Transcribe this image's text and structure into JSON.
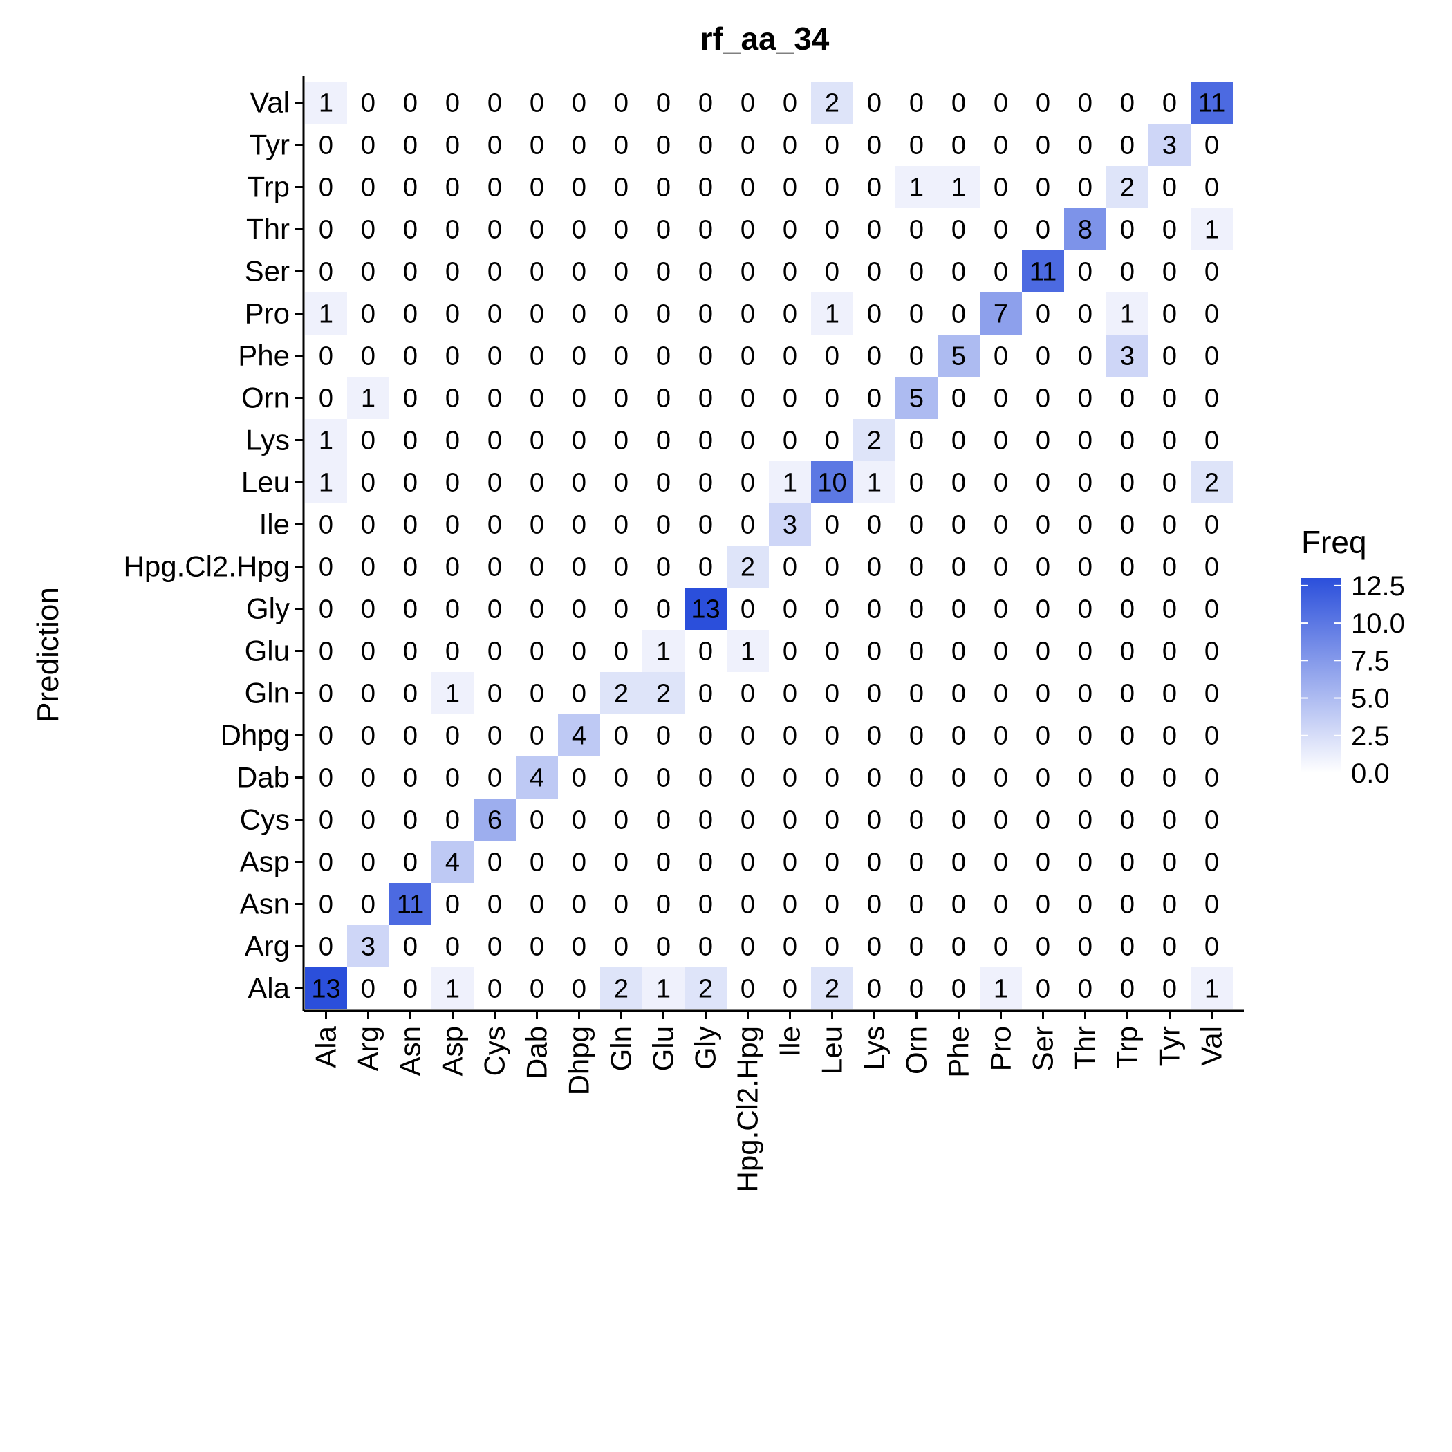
{
  "chart_data": {
    "type": "heatmap",
    "title": "rf_aa_34",
    "xlabel": "",
    "ylabel": "Prediction",
    "x_categories": [
      "Ala",
      "Arg",
      "Asn",
      "Asp",
      "Cys",
      "Dab",
      "Dhpg",
      "Gln",
      "Glu",
      "Gly",
      "Hpg.Cl2.Hpg",
      "Ile",
      "Leu",
      "Lys",
      "Orn",
      "Phe",
      "Pro",
      "Ser",
      "Thr",
      "Trp",
      "Tyr",
      "Val"
    ],
    "y_categories": [
      "Ala",
      "Arg",
      "Asn",
      "Asp",
      "Cys",
      "Dab",
      "Dhpg",
      "Gln",
      "Glu",
      "Gly",
      "Hpg.Cl2.Hpg",
      "Ile",
      "Leu",
      "Lys",
      "Orn",
      "Phe",
      "Pro",
      "Ser",
      "Thr",
      "Trp",
      "Tyr",
      "Val"
    ],
    "values": [
      [
        13,
        0,
        0,
        1,
        0,
        0,
        0,
        2,
        1,
        2,
        0,
        0,
        2,
        0,
        0,
        0,
        1,
        0,
        0,
        0,
        0,
        1
      ],
      [
        0,
        3,
        0,
        0,
        0,
        0,
        0,
        0,
        0,
        0,
        0,
        0,
        0,
        0,
        0,
        0,
        0,
        0,
        0,
        0,
        0,
        0
      ],
      [
        0,
        0,
        11,
        0,
        0,
        0,
        0,
        0,
        0,
        0,
        0,
        0,
        0,
        0,
        0,
        0,
        0,
        0,
        0,
        0,
        0,
        0
      ],
      [
        0,
        0,
        0,
        4,
        0,
        0,
        0,
        0,
        0,
        0,
        0,
        0,
        0,
        0,
        0,
        0,
        0,
        0,
        0,
        0,
        0,
        0
      ],
      [
        0,
        0,
        0,
        0,
        6,
        0,
        0,
        0,
        0,
        0,
        0,
        0,
        0,
        0,
        0,
        0,
        0,
        0,
        0,
        0,
        0,
        0
      ],
      [
        0,
        0,
        0,
        0,
        0,
        4,
        0,
        0,
        0,
        0,
        0,
        0,
        0,
        0,
        0,
        0,
        0,
        0,
        0,
        0,
        0,
        0
      ],
      [
        0,
        0,
        0,
        0,
        0,
        0,
        4,
        0,
        0,
        0,
        0,
        0,
        0,
        0,
        0,
        0,
        0,
        0,
        0,
        0,
        0,
        0
      ],
      [
        0,
        0,
        0,
        1,
        0,
        0,
        0,
        2,
        2,
        0,
        0,
        0,
        0,
        0,
        0,
        0,
        0,
        0,
        0,
        0,
        0,
        0
      ],
      [
        0,
        0,
        0,
        0,
        0,
        0,
        0,
        0,
        1,
        0,
        1,
        0,
        0,
        0,
        0,
        0,
        0,
        0,
        0,
        0,
        0,
        0
      ],
      [
        0,
        0,
        0,
        0,
        0,
        0,
        0,
        0,
        0,
        13,
        0,
        0,
        0,
        0,
        0,
        0,
        0,
        0,
        0,
        0,
        0,
        0
      ],
      [
        0,
        0,
        0,
        0,
        0,
        0,
        0,
        0,
        0,
        0,
        2,
        0,
        0,
        0,
        0,
        0,
        0,
        0,
        0,
        0,
        0,
        0
      ],
      [
        0,
        0,
        0,
        0,
        0,
        0,
        0,
        0,
        0,
        0,
        0,
        3,
        0,
        0,
        0,
        0,
        0,
        0,
        0,
        0,
        0,
        0
      ],
      [
        1,
        0,
        0,
        0,
        0,
        0,
        0,
        0,
        0,
        0,
        0,
        1,
        10,
        1,
        0,
        0,
        0,
        0,
        0,
        0,
        0,
        2
      ],
      [
        1,
        0,
        0,
        0,
        0,
        0,
        0,
        0,
        0,
        0,
        0,
        0,
        0,
        2,
        0,
        0,
        0,
        0,
        0,
        0,
        0,
        0
      ],
      [
        0,
        1,
        0,
        0,
        0,
        0,
        0,
        0,
        0,
        0,
        0,
        0,
        0,
        0,
        5,
        0,
        0,
        0,
        0,
        0,
        0,
        0
      ],
      [
        0,
        0,
        0,
        0,
        0,
        0,
        0,
        0,
        0,
        0,
        0,
        0,
        0,
        0,
        0,
        5,
        0,
        0,
        0,
        3,
        0,
        0
      ],
      [
        1,
        0,
        0,
        0,
        0,
        0,
        0,
        0,
        0,
        0,
        0,
        0,
        1,
        0,
        0,
        0,
        7,
        0,
        0,
        1,
        0,
        0
      ],
      [
        0,
        0,
        0,
        0,
        0,
        0,
        0,
        0,
        0,
        0,
        0,
        0,
        0,
        0,
        0,
        0,
        0,
        11,
        0,
        0,
        0,
        0
      ],
      [
        0,
        0,
        0,
        0,
        0,
        0,
        0,
        0,
        0,
        0,
        0,
        0,
        0,
        0,
        0,
        0,
        0,
        0,
        8,
        0,
        0,
        1
      ],
      [
        0,
        0,
        0,
        0,
        0,
        0,
        0,
        0,
        0,
        0,
        0,
        0,
        0,
        0,
        1,
        1,
        0,
        0,
        0,
        2,
        0,
        0
      ],
      [
        0,
        0,
        0,
        0,
        0,
        0,
        0,
        0,
        0,
        0,
        0,
        0,
        0,
        0,
        0,
        0,
        0,
        0,
        0,
        0,
        3,
        0
      ],
      [
        1,
        0,
        0,
        0,
        0,
        0,
        0,
        0,
        0,
        0,
        0,
        0,
        2,
        0,
        0,
        0,
        0,
        0,
        0,
        0,
        0,
        11
      ]
    ],
    "color_scale": {
      "low": "#ffffff",
      "high": "#2b4fdb",
      "domain": [
        0,
        13
      ]
    },
    "legend": {
      "title": "Freq",
      "position": "right",
      "ticks": [
        "0.0",
        "2.5",
        "5.0",
        "7.5",
        "10.0",
        "12.5"
      ]
    },
    "grid": false
  }
}
